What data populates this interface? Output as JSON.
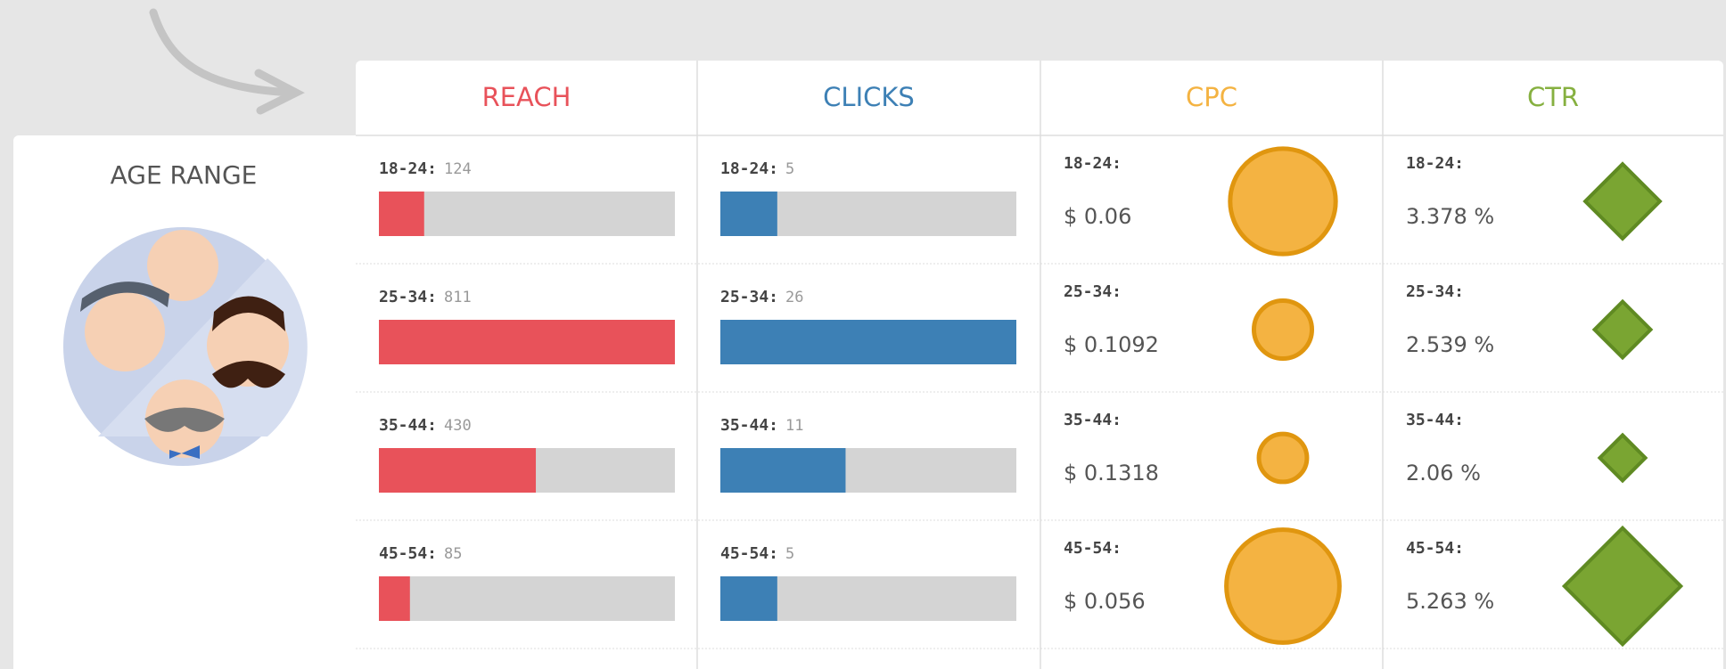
{
  "side_title": "AGE RANGE",
  "columns": {
    "reach": "REACH",
    "clicks": "CLICKS",
    "cpc": "CPC",
    "ctr": "CTR"
  },
  "rows": [
    {
      "age": "18-24:",
      "reach": 124,
      "clicks": 5,
      "cpc": 0.06,
      "cpc_label": "$ 0.06",
      "ctr": 3.378,
      "ctr_label": "3.378 %"
    },
    {
      "age": "25-34:",
      "reach": 811,
      "clicks": 26,
      "cpc": 0.1092,
      "cpc_label": "$ 0.1092",
      "ctr": 2.539,
      "ctr_label": "2.539 %"
    },
    {
      "age": "35-44:",
      "reach": 430,
      "clicks": 11,
      "cpc": 0.1318,
      "cpc_label": "$ 0.1318",
      "ctr": 2.06,
      "ctr_label": "2.06 %"
    },
    {
      "age": "45-54:",
      "reach": 85,
      "clicks": 5,
      "cpc": 0.056,
      "cpc_label": "$ 0.056",
      "ctr": 5.263,
      "ctr_label": "5.263 %"
    }
  ]
}
